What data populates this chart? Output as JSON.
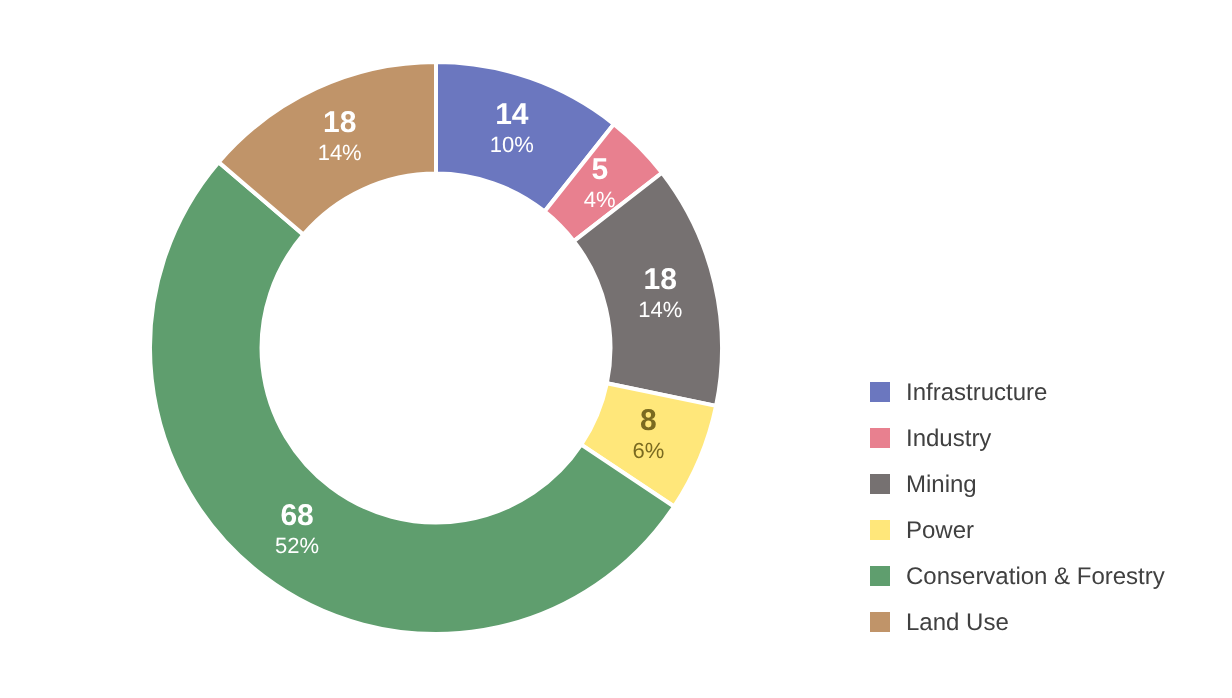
{
  "chart_data": {
    "type": "donut",
    "categories": [
      "Infrastructure",
      "Industry",
      "Mining",
      "Power",
      "Conservation & Forestry",
      "Land Use"
    ],
    "values": [
      14,
      5,
      18,
      8,
      68,
      18
    ],
    "colors": [
      "#6b77bf",
      "#e8808f",
      "#767171",
      "#ffe77a",
      "#5f9e6e",
      "#c09469"
    ],
    "value_labels": [
      "14\n10%",
      "5\n4%",
      "18\n14%",
      "8\n6%",
      "68\n52%",
      "18\n14%"
    ],
    "legend": "right"
  }
}
